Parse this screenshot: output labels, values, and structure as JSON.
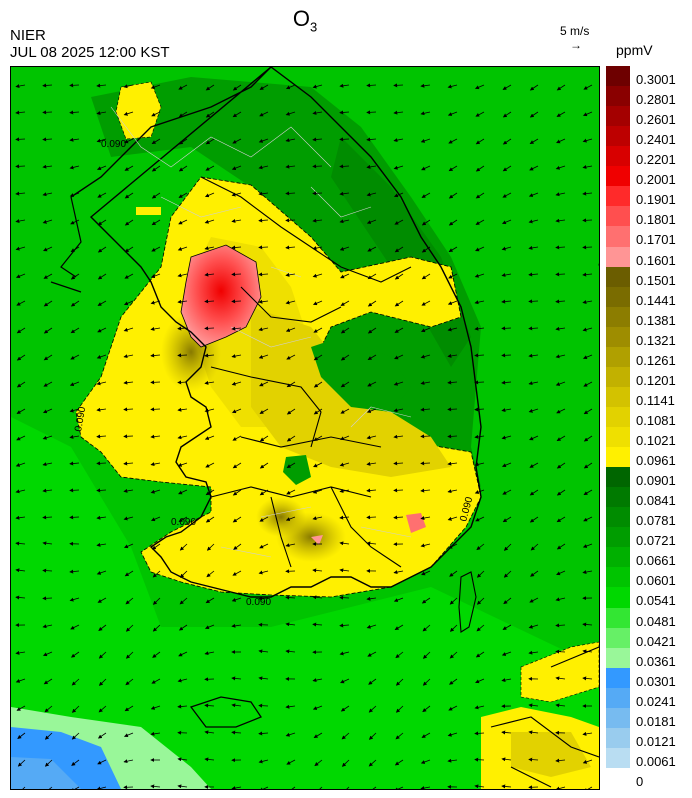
{
  "header": {
    "title_main": "O",
    "title_sub": "3",
    "agency": "NIER",
    "timestamp": "JUL 08 2025 12:00 KST",
    "vector_ref": "5 m/s",
    "vector_arrow": "→",
    "units": "ppmV"
  },
  "colorbar": {
    "labels": [
      "0.3001",
      "0.2801",
      "0.2601",
      "0.2401",
      "0.2201",
      "0.2001",
      "0.1901",
      "0.1801",
      "0.1701",
      "0.1601",
      "0.1501",
      "0.1441",
      "0.1381",
      "0.1321",
      "0.1261",
      "0.1201",
      "0.1141",
      "0.1081",
      "0.1021",
      "0.0961",
      "0.0901",
      "0.0841",
      "0.0781",
      "0.0721",
      "0.0661",
      "0.0601",
      "0.0541",
      "0.0481",
      "0.0421",
      "0.0361",
      "0.0301",
      "0.0241",
      "0.0181",
      "0.0121",
      "0.0061",
      "0"
    ],
    "colors": [
      "#6e0000",
      "#8a0000",
      "#a40000",
      "#bd0000",
      "#d80000",
      "#f00000",
      "#ff2a2a",
      "#ff4f4f",
      "#ff7070",
      "#ff9595",
      "#6b5d00",
      "#7a6c00",
      "#8c7d00",
      "#9e8d00",
      "#b0a000",
      "#c2b100",
      "#d3c200",
      "#e2d200",
      "#efe000",
      "#fff000",
      "#006600",
      "#007a00",
      "#008c00",
      "#009d00",
      "#00b000",
      "#00c400",
      "#00d800",
      "#33e633",
      "#66f066",
      "#99f799",
      "#3399ff",
      "#55aaf5",
      "#77bbf0",
      "#99ccee",
      "#b9ddf2"
    ]
  },
  "map": {
    "contour_label": "0.090",
    "wind": {
      "u_ms": -3.0,
      "v_ms": -1.0
    }
  }
}
